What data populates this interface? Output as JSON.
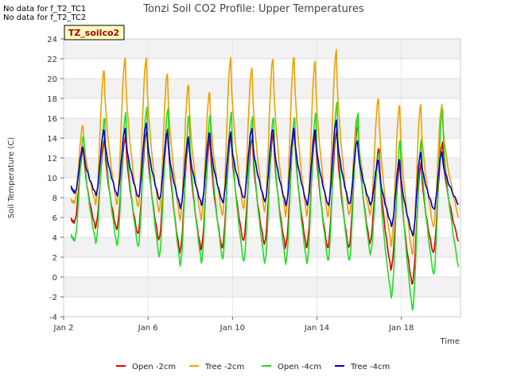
{
  "notes": [
    "No data for f_T2_TC1",
    "No data for f_T2_TC2"
  ],
  "site_tag": "TZ_soilco2",
  "chart_data": {
    "type": "line",
    "title": "Tonzi Soil CO2 Profile: Upper Temperatures",
    "xlabel": "Time",
    "ylabel": "Soil Temperature (C)",
    "xlim": [
      0,
      18.8
    ],
    "ylim": [
      -4,
      24
    ],
    "yticks": [
      -4,
      -2,
      0,
      2,
      4,
      6,
      8,
      10,
      12,
      14,
      16,
      18,
      20,
      22,
      24
    ],
    "xticks": [
      {
        "value": 0,
        "label": "Jan 2"
      },
      {
        "value": 4,
        "label": "Jan 6"
      },
      {
        "value": 8,
        "label": "Jan 10"
      },
      {
        "value": 12,
        "label": "Jan 14"
      },
      {
        "value": 16,
        "label": "Jan 18"
      }
    ],
    "grid": true,
    "legend_position": "bottom",
    "x_note": "x values are day offsets from Jan 2",
    "series": [
      {
        "name": "Open -2cm",
        "color": "#dd0000",
        "min": [
          5.5,
          5.0,
          4.8,
          4.3,
          3.7,
          2.5,
          2.8,
          2.9,
          3.6,
          3.3,
          3.0,
          3.0,
          2.9,
          2.9,
          3.4,
          0.8,
          -0.7,
          2.4
        ],
        "max": [
          13.0,
          13.8,
          14.2,
          14.8,
          15.0,
          14.2,
          14.0,
          14.5,
          14.0,
          14.5,
          14.8,
          14.6,
          14.8,
          15.3,
          13.0,
          11.5,
          11.5,
          13.5
        ],
        "start": 5.9,
        "end": 3.6
      },
      {
        "name": "Tree -2cm",
        "color": "#f0a000",
        "min": [
          7.5,
          7.4,
          7.3,
          7.0,
          6.5,
          5.8,
          5.8,
          6.2,
          6.8,
          6.6,
          6.2,
          6.2,
          6.0,
          6.2,
          6.3,
          3.2,
          2.3,
          5.0
        ],
        "max": [
          15.3,
          20.8,
          22.0,
          22.0,
          20.5,
          19.4,
          18.6,
          22.0,
          21.0,
          22.0,
          22.2,
          21.7,
          22.8,
          16.2,
          18.0,
          17.3,
          17.3,
          17.3
        ],
        "start": 7.8,
        "end": 6.0
      },
      {
        "name": "Open -4cm",
        "color": "#22dd22",
        "min": [
          3.7,
          3.5,
          3.2,
          3.0,
          2.0,
          1.2,
          1.5,
          1.8,
          1.5,
          1.4,
          1.4,
          1.4,
          1.6,
          1.6,
          2.3,
          -2.0,
          -3.3,
          0.2
        ],
        "max": [
          14.2,
          16.0,
          16.5,
          17.0,
          17.0,
          16.3,
          16.3,
          16.5,
          16.1,
          16.1,
          16.1,
          16.5,
          17.5,
          16.5,
          12.5,
          13.8,
          13.8,
          16.8
        ],
        "start": 4.3,
        "end": 1.0
      },
      {
        "name": "Tree -4cm",
        "color": "#0000cc",
        "min": [
          8.5,
          8.3,
          8.2,
          8.0,
          7.8,
          7.0,
          7.3,
          7.5,
          7.9,
          7.6,
          7.3,
          7.3,
          7.2,
          7.3,
          7.3,
          5.2,
          4.2,
          6.8
        ],
        "max": [
          13.1,
          14.8,
          14.9,
          15.4,
          14.6,
          14.0,
          14.5,
          14.5,
          14.9,
          14.9,
          15.0,
          14.8,
          15.7,
          13.7,
          11.8,
          11.8,
          12.5,
          12.5
        ],
        "start": 9.2,
        "end": 7.3
      }
    ]
  }
}
